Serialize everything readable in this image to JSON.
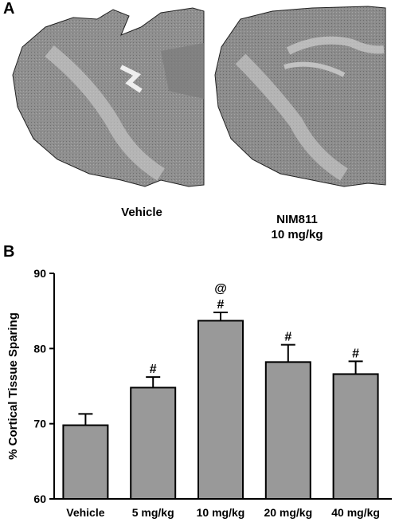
{
  "panel_labels": {
    "a": "A",
    "b": "B"
  },
  "panel_a": {
    "captions": {
      "left": "Vehicle",
      "right_line1": "NIM811",
      "right_line2": "10 mg/kg"
    }
  },
  "colors": {
    "bar_fill": "#999999",
    "outline": "#000000",
    "tissue": "#8c8c8c"
  },
  "chart_data": {
    "type": "bar",
    "categories": [
      "Vehicle",
      "5 mg/kg",
      "10 mg/kg",
      "20 mg/kg",
      "40 mg/kg"
    ],
    "values": [
      69.8,
      74.8,
      83.7,
      78.2,
      76.6
    ],
    "errors": [
      1.5,
      1.4,
      1.1,
      2.3,
      1.7
    ],
    "annotations": [
      "",
      "#",
      "@\n#",
      "#",
      "#"
    ],
    "ylabel": "% Cortical Tissue Sparing",
    "xlabel": "",
    "title": "",
    "ylim": [
      60,
      90
    ],
    "yticks": [
      60,
      70,
      80,
      90
    ],
    "grid": false
  }
}
